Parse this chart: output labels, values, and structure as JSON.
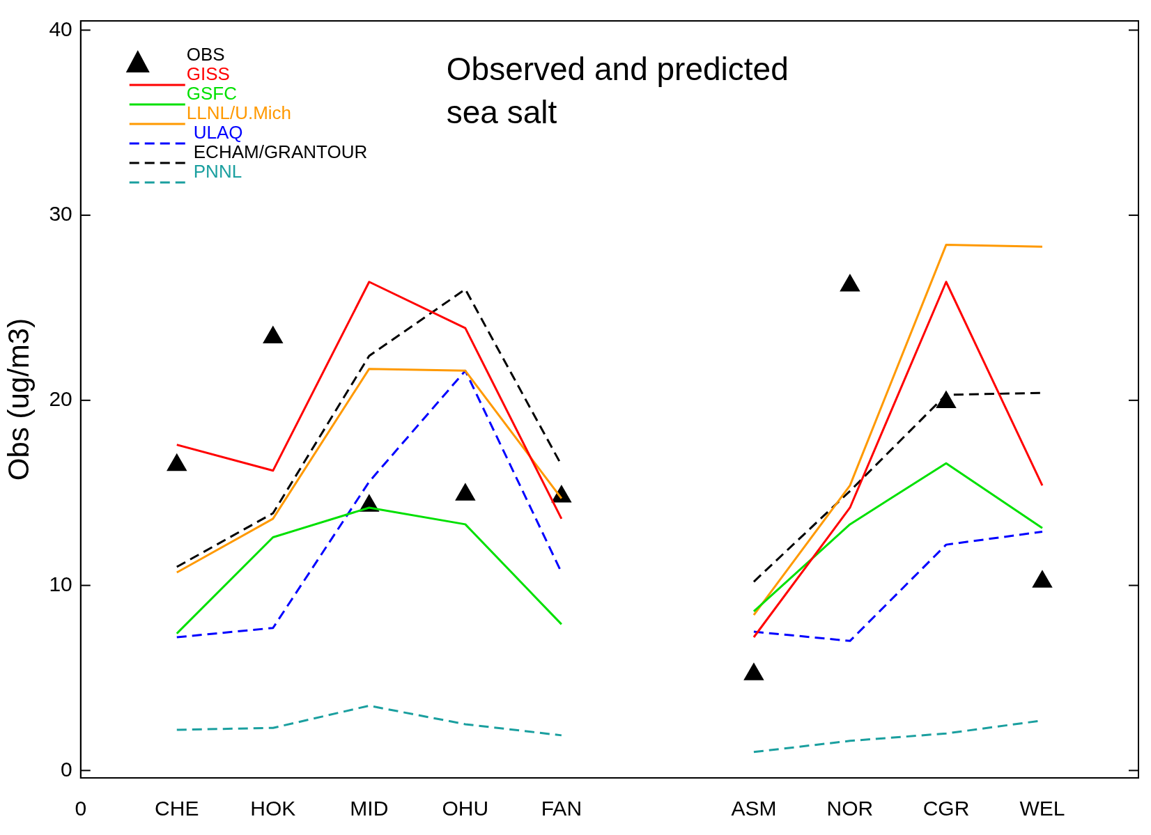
{
  "chart_data": {
    "type": "line",
    "title": "Observed and predicted sea salt",
    "ylabel": "Obs (ug/m3)",
    "categories": [
      "0",
      "CHE",
      "HOK",
      "MID",
      "OHU",
      "FAN",
      null,
      "ASM",
      "NOR",
      "CGR",
      "WEL",
      null
    ],
    "ylim": [
      -0.4,
      40.5
    ],
    "yticks": [
      0,
      10,
      20,
      30,
      40
    ],
    "grid": false,
    "legend": "top left",
    "series": [
      {
        "name": "OBS",
        "type": "scatter",
        "marker": "triangle",
        "color": "#000000",
        "values": [
          null,
          16.5,
          23.4,
          14.3,
          14.9,
          14.8,
          null,
          5.2,
          26.2,
          19.9,
          10.2,
          null
        ]
      },
      {
        "name": "GISS",
        "color": "#ff0000",
        "line_style": "solid",
        "values": [
          null,
          17.6,
          16.2,
          26.4,
          23.9,
          13.6,
          null,
          7.2,
          14.2,
          26.4,
          15.4,
          null
        ]
      },
      {
        "name": "GSFC",
        "color": "#00e000",
        "line_style": "solid",
        "values": [
          null,
          7.4,
          12.6,
          14.2,
          13.3,
          7.9,
          null,
          8.6,
          13.3,
          16.6,
          13.1,
          null
        ]
      },
      {
        "name": "LLNL/U.Mich",
        "color": "#ff9900",
        "line_style": "solid",
        "values": [
          null,
          10.7,
          13.6,
          21.7,
          21.6,
          14.7,
          null,
          8.4,
          15.4,
          28.4,
          28.3,
          null
        ]
      },
      {
        "name": "ULAQ",
        "color": "#0000ff",
        "line_style": "dashed",
        "values": [
          null,
          7.2,
          7.7,
          15.6,
          21.6,
          10.7,
          null,
          7.5,
          7.0,
          12.2,
          12.9,
          null
        ]
      },
      {
        "name": "ECHAM/GRANTOUR",
        "color": "#000000",
        "line_style": "dashed",
        "values": [
          null,
          11.0,
          13.9,
          22.4,
          26.0,
          16.5,
          null,
          10.2,
          15.1,
          20.3,
          20.4,
          null
        ]
      },
      {
        "name": "PNNL",
        "color": "#1a9f9f",
        "line_style": "dashed",
        "values": [
          null,
          2.2,
          2.3,
          3.5,
          2.5,
          1.9,
          null,
          1.0,
          1.6,
          2.0,
          2.7,
          null
        ]
      }
    ]
  }
}
